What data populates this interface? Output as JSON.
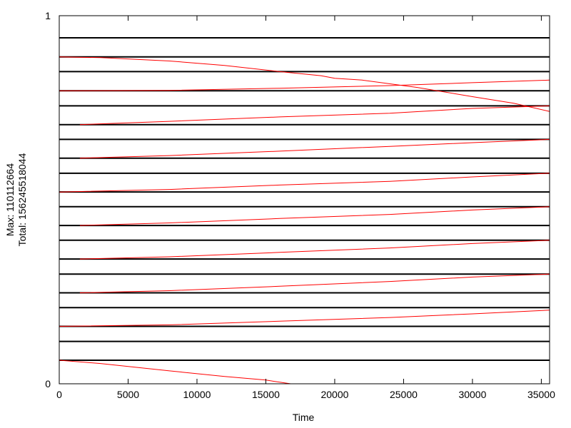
{
  "chart_data": {
    "type": "line",
    "title": "",
    "xlabel": "Time",
    "ylabel_lines": [
      "Max: 110112664",
      "Total: 156245518044"
    ],
    "xlim": [
      0,
      35600
    ],
    "ylim": [
      0,
      1
    ],
    "x_ticks": [
      0,
      5000,
      10000,
      15000,
      20000,
      25000,
      30000,
      35000
    ],
    "y_ticks": [
      0,
      1
    ],
    "y_tick_labels": [
      "0",
      "1"
    ],
    "grid": false,
    "legend": "none",
    "black_lines_y": [
      0.94,
      0.888,
      0.848,
      0.796,
      0.755,
      0.704,
      0.664,
      0.613,
      0.572,
      0.521,
      0.481,
      0.43,
      0.39,
      0.339,
      0.298,
      0.247,
      0.207,
      0.156,
      0.115,
      0.064
    ],
    "series": [
      {
        "x": [
          0,
          3000,
          8000,
          12000,
          16000,
          19000,
          20000,
          22000,
          26000,
          30000,
          33000,
          35600
        ],
        "y": [
          0.888,
          0.886,
          0.877,
          0.865,
          0.848,
          0.837,
          0.83,
          0.825,
          0.805,
          0.78,
          0.762,
          0.74
        ]
      },
      {
        "x": [
          0,
          8000,
          16000,
          24000,
          30000,
          35600
        ],
        "y": [
          0.796,
          0.797,
          0.803,
          0.81,
          0.818,
          0.825
        ]
      },
      {
        "x": [
          1500,
          8000,
          16000,
          24000,
          30000,
          35600
        ],
        "y": [
          0.704,
          0.713,
          0.725,
          0.735,
          0.748,
          0.755
        ]
      },
      {
        "x": [
          1500,
          8000,
          16000,
          24000,
          30000,
          35600
        ],
        "y": [
          0.613,
          0.62,
          0.632,
          0.645,
          0.655,
          0.664
        ]
      },
      {
        "x": [
          0,
          8000,
          16000,
          24000,
          30000,
          35600
        ],
        "y": [
          0.521,
          0.528,
          0.54,
          0.55,
          0.562,
          0.572
        ]
      },
      {
        "x": [
          1500,
          8000,
          16000,
          24000,
          30000,
          35600
        ],
        "y": [
          0.43,
          0.437,
          0.449,
          0.46,
          0.472,
          0.481
        ]
      },
      {
        "x": [
          1500,
          8000,
          16000,
          24000,
          30000,
          35600
        ],
        "y": [
          0.339,
          0.345,
          0.357,
          0.369,
          0.381,
          0.39
        ]
      },
      {
        "x": [
          1500,
          8000,
          16000,
          24000,
          30000,
          35600
        ],
        "y": [
          0.247,
          0.253,
          0.265,
          0.278,
          0.29,
          0.298
        ]
      },
      {
        "x": [
          0,
          8000,
          16000,
          24000,
          30000,
          35600
        ],
        "y": [
          0.156,
          0.16,
          0.17,
          0.18,
          0.19,
          0.2
        ]
      },
      {
        "x": [
          0,
          3000,
          8000,
          12000,
          15000,
          16800
        ],
        "y": [
          0.064,
          0.055,
          0.035,
          0.02,
          0.01,
          0.0
        ]
      }
    ],
    "series_color": "#ff0000",
    "line_color": "#000000"
  }
}
